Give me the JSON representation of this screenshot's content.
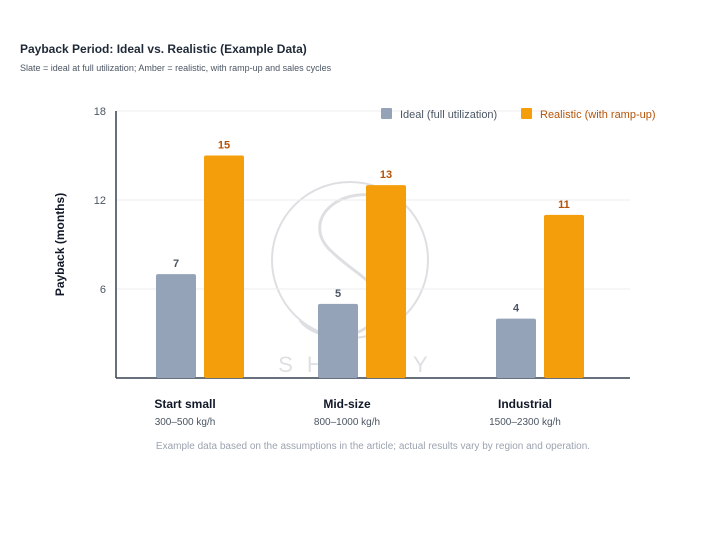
{
  "title": "Payback Period: Ideal vs. Realistic (Example Data)",
  "subtitle": "Slate = ideal at full utilization; Amber = realistic, with ramp-up and sales cycles",
  "note": "Example data based on the assumptions in the article; actual results vary by region and operation.",
  "watermark": "SHULIY",
  "colors": {
    "ideal": "#94a3b8",
    "realistic": "#f59e0b",
    "realistic_label": "#b45309",
    "ideal_label": "#4b5563",
    "axis": "#374151",
    "grid": "#ececec"
  },
  "chart_data": {
    "type": "bar",
    "categories": [
      "Start small",
      "Mid-size",
      "Industrial"
    ],
    "category_sublabels": [
      "300–500 kg/h",
      "800–1000 kg/h",
      "1500–2300 kg/h"
    ],
    "series": [
      {
        "name": "Ideal (full utilization)",
        "values": [
          7,
          5,
          4
        ]
      },
      {
        "name": "Realistic (with ramp-up)",
        "values": [
          15,
          13,
          11
        ]
      }
    ],
    "ylabel": "Payback (months)",
    "ylim": [
      0,
      18
    ],
    "yticks": [
      6,
      12,
      18
    ],
    "grid": true,
    "legend": "top-right"
  }
}
